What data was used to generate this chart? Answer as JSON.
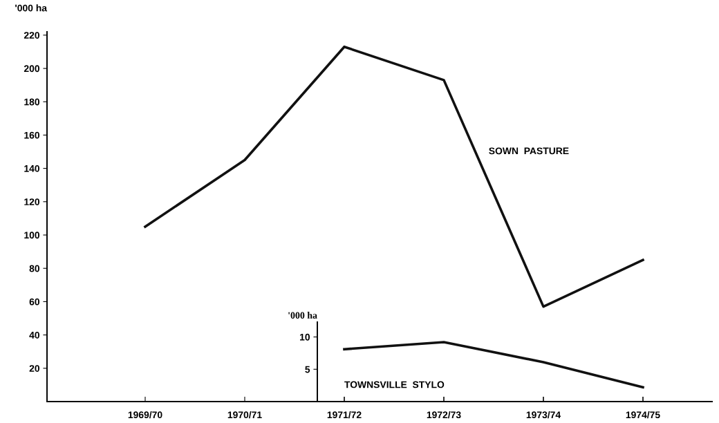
{
  "chart_data": [
    {
      "type": "line",
      "ylabel": "'000 ha",
      "categories": [
        "1969/70",
        "1970/71",
        "1971/72",
        "1972/73",
        "1973/74",
        "1974/75"
      ],
      "series": [
        {
          "name": "SOWN  PASTURE",
          "color": "#111111",
          "values": [
            105,
            145,
            213,
            193,
            57,
            85
          ]
        }
      ],
      "ylim": [
        0,
        222
      ],
      "yticks": [
        20,
        40,
        60,
        80,
        100,
        120,
        140,
        160,
        180,
        200,
        220
      ],
      "grid": false,
      "legend": false,
      "marker": "none",
      "line_style": "solid"
    },
    {
      "type": "line",
      "ylabel": "'000 ha",
      "categories": [
        "1971/72",
        "1972/73",
        "1973/74",
        "1974/75"
      ],
      "series": [
        {
          "name": "TOWNSVILLE  STYLO",
          "color": "#111111",
          "values": [
            8.1,
            9.2,
            6.1,
            2.2
          ]
        }
      ],
      "ylim": [
        0,
        12.3
      ],
      "yticks": [
        5,
        10
      ],
      "tick_labels": "y",
      "grid": false,
      "legend": false,
      "marker": "none",
      "line_style": "solid"
    }
  ]
}
